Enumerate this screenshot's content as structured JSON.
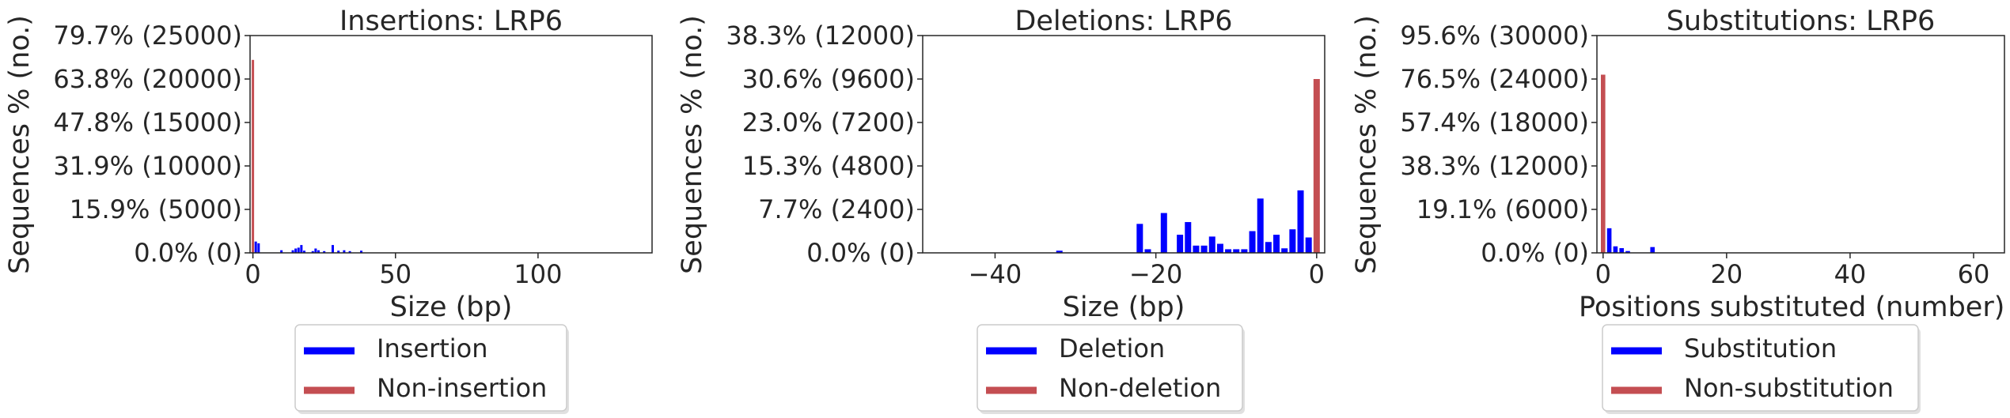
{
  "chart_data": [
    {
      "type": "bar",
      "title": "Insertions: LRP6",
      "xlabel": "Size (bp)",
      "ylabel": "Sequences % (no.)",
      "xlim": [
        -1,
        140
      ],
      "ylim": [
        0,
        25000
      ],
      "xticks": [
        0,
        50,
        100
      ],
      "xtick_labels": [
        "0",
        "50",
        "100"
      ],
      "yticks": [
        0,
        5000,
        10000,
        15000,
        20000,
        25000
      ],
      "ytick_labels": [
        "0.0% (0)",
        "15.9% (5000)",
        "31.9% (10000)",
        "47.8% (15000)",
        "63.8% (20000)",
        "79.7% (25000)"
      ],
      "legend_position": "below",
      "series": [
        {
          "name": "Insertion",
          "color": "#0000ff",
          "x": [
            1,
            2,
            10,
            14,
            15,
            16,
            17,
            18,
            21,
            22,
            23,
            25,
            28,
            30,
            32,
            34,
            38
          ],
          "values": [
            1300,
            1100,
            300,
            300,
            500,
            600,
            900,
            250,
            200,
            500,
            300,
            200,
            900,
            250,
            300,
            200,
            250
          ]
        },
        {
          "name": "Non-insertion",
          "color": "#c44e52",
          "x": [
            0
          ],
          "values": [
            22200
          ]
        }
      ]
    },
    {
      "type": "bar",
      "title": "Deletions: LRP6",
      "xlabel": "Size (bp)",
      "ylabel": "Sequences % (no.)",
      "xlim": [
        -49,
        1
      ],
      "ylim": [
        0,
        12000
      ],
      "xticks": [
        -40,
        -20,
        0
      ],
      "xtick_labels": [
        "−40",
        "−20",
        "0"
      ],
      "yticks": [
        0,
        2400,
        4800,
        7200,
        9600,
        12000
      ],
      "ytick_labels": [
        "0.0% (0)",
        "7.7% (2400)",
        "15.3% (4800)",
        "23.0% (7200)",
        "30.6% (9600)",
        "38.3% (12000)"
      ],
      "legend_position": "below",
      "series": [
        {
          "name": "Deletion",
          "color": "#0000ff",
          "x": [
            -32,
            -22,
            -21,
            -19,
            -17,
            -16,
            -15,
            -14,
            -13,
            -12,
            -11,
            -10,
            -9,
            -8,
            -7,
            -6,
            -5,
            -4,
            -3,
            -2,
            -1
          ],
          "values": [
            120,
            1600,
            200,
            2200,
            1000,
            1700,
            400,
            400,
            900,
            500,
            200,
            200,
            200,
            1200,
            3000,
            600,
            1000,
            250,
            1300,
            3450,
            850
          ]
        },
        {
          "name": "Non-deletion",
          "color": "#c44e52",
          "x": [
            0
          ],
          "values": [
            9600
          ]
        }
      ]
    },
    {
      "type": "bar",
      "title": "Substitutions: LRP6",
      "xlabel": "Positions substituted (number)",
      "ylabel": "Sequences % (no.)",
      "xlim": [
        -1,
        65
      ],
      "ylim": [
        0,
        30000
      ],
      "xticks": [
        0,
        20,
        40,
        60
      ],
      "xtick_labels": [
        "0",
        "20",
        "40",
        "60"
      ],
      "yticks": [
        0,
        6000,
        12000,
        18000,
        24000,
        30000
      ],
      "ytick_labels": [
        "0.0% (0)",
        "19.1% (6000)",
        "38.3% (12000)",
        "57.4% (18000)",
        "76.5% (24000)",
        "95.6% (30000)"
      ],
      "legend_position": "below",
      "series": [
        {
          "name": "Substitution",
          "color": "#0000ff",
          "x": [
            1,
            2,
            3,
            4,
            8
          ],
          "values": [
            3400,
            900,
            650,
            250,
            800
          ]
        },
        {
          "name": "Non-substitution",
          "color": "#c44e52",
          "x": [
            0
          ],
          "values": [
            24600
          ]
        }
      ]
    }
  ]
}
